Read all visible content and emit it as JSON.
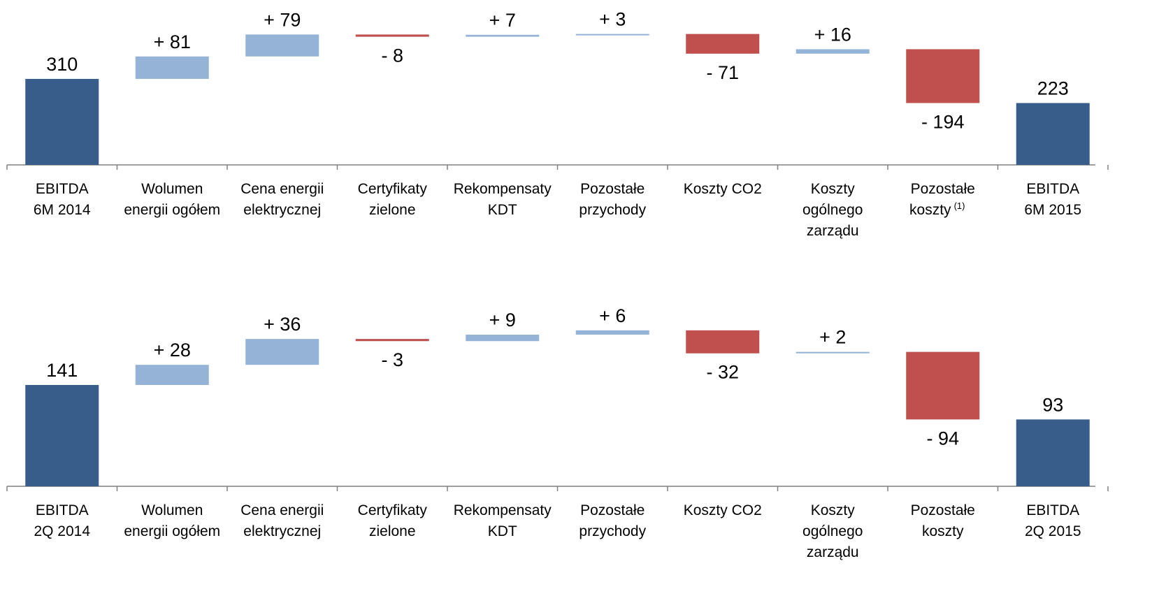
{
  "colors": {
    "total": "#385D8A",
    "increase": "#95B3D7",
    "decrease": "#C0504D",
    "axis": "#808080"
  },
  "chart_data": [
    {
      "type": "bar",
      "subtype": "waterfall",
      "categories": [
        [
          "EBITDA",
          "6M 2014"
        ],
        [
          "Wolumen",
          "energii ogółem"
        ],
        [
          "Cena energii",
          "elektrycznej"
        ],
        [
          "Certyfikaty",
          "zielone"
        ],
        [
          "Rekompensaty",
          "KDT"
        ],
        [
          "Pozostałe",
          "przychody"
        ],
        [
          "Koszty CO2"
        ],
        [
          "Koszty",
          "ogólnego",
          "zarządu"
        ],
        [
          "Pozostałe",
          "koszty"
        ],
        [
          "EBITDA",
          "6M 2015"
        ]
      ],
      "category_superscripts": [
        "",
        "",
        "",
        "",
        "",
        "",
        "",
        "",
        "(1)",
        ""
      ],
      "kinds": [
        "total",
        "delta",
        "delta",
        "delta",
        "delta",
        "delta",
        "delta",
        "delta",
        "delta",
        "total"
      ],
      "values": [
        310,
        81,
        79,
        -8,
        7,
        3,
        -71,
        16,
        -194,
        223
      ],
      "labels": [
        "310",
        "+ 81",
        "+ 79",
        "- 8",
        "+ 7",
        "+ 3",
        "- 71",
        "+ 16",
        "- 194",
        "223"
      ]
    },
    {
      "type": "bar",
      "subtype": "waterfall",
      "categories": [
        [
          "EBITDA",
          "2Q 2014"
        ],
        [
          "Wolumen",
          "energii ogółem"
        ],
        [
          "Cena energii",
          "elektrycznej"
        ],
        [
          "Certyfikaty",
          "zielone"
        ],
        [
          "Rekompensaty",
          "KDT"
        ],
        [
          "Pozostałe",
          "przychody"
        ],
        [
          "Koszty CO2"
        ],
        [
          "Koszty",
          "ogólnego",
          "zarządu"
        ],
        [
          "Pozostałe",
          "koszty"
        ],
        [
          "EBITDA",
          "2Q 2015"
        ]
      ],
      "category_superscripts": [
        "",
        "",
        "",
        "",
        "",
        "",
        "",
        "",
        "",
        ""
      ],
      "kinds": [
        "total",
        "delta",
        "delta",
        "delta",
        "delta",
        "delta",
        "delta",
        "delta",
        "delta",
        "total"
      ],
      "values": [
        141,
        28,
        36,
        -3,
        9,
        6,
        -32,
        2,
        -94,
        93
      ],
      "labels": [
        "141",
        "+ 28",
        "+ 36",
        "- 3",
        "+ 9",
        "+ 6",
        "- 32",
        "+ 2",
        "- 94",
        "93"
      ]
    }
  ]
}
